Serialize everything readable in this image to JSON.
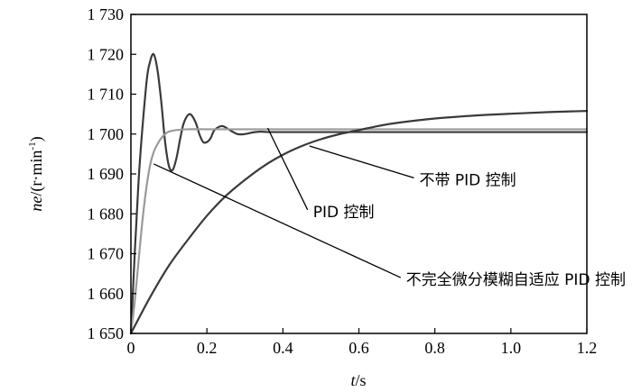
{
  "chart_data": {
    "type": "line",
    "title": "",
    "xlabel_var": "t",
    "xlabel_unit": "/s",
    "ylabel_var": "ne",
    "ylabel_unit": "/(r·min",
    "ylabel_exp": "-1",
    "ylabel_close": ")",
    "xlim": [
      0,
      1.2
    ],
    "ylim": [
      1650,
      1730
    ],
    "grid": false,
    "xticks": [
      0,
      0.2,
      0.4,
      0.6,
      0.8,
      1.0,
      1.2
    ],
    "xtick_labels": [
      "0",
      "0.2",
      "0.4",
      "0.6",
      "0.8",
      "1.0",
      "1.2"
    ],
    "yticks": [
      1650,
      1660,
      1670,
      1680,
      1690,
      1700,
      1710,
      1720,
      1730
    ],
    "ytick_labels": [
      "1 650",
      "1 660",
      "1 670",
      "1 680",
      "1 690",
      "1 700",
      "1 710",
      "1 720",
      "1 730"
    ],
    "series": [
      {
        "color": "#3a3a3a",
        "x": [
          0,
          0.02,
          0.04,
          0.05,
          0.06,
          0.07,
          0.08,
          0.09,
          0.1,
          0.11,
          0.12,
          0.13,
          0.14,
          0.155,
          0.17,
          0.18,
          0.19,
          0.2,
          0.21,
          0.22,
          0.24,
          0.26,
          0.28,
          0.3,
          0.32,
          0.34,
          0.36,
          0.4,
          0.5,
          0.6,
          0.8,
          1.0,
          1.2
        ],
        "y": [
          1650,
          1688,
          1712,
          1718,
          1720,
          1716,
          1708,
          1698,
          1692,
          1691,
          1694,
          1699,
          1703,
          1705,
          1703,
          1700,
          1698,
          1698,
          1699,
          1701,
          1702,
          1701,
          1700,
          1700,
          1700.4,
          1700.6,
          1700.5,
          1700.5,
          1700.5,
          1700.5,
          1700.5,
          1700.5,
          1700.5
        ]
      },
      {
        "color": "#9a9a9a",
        "x": [
          0,
          0.01,
          0.02,
          0.03,
          0.04,
          0.05,
          0.06,
          0.07,
          0.08,
          0.09,
          0.1,
          0.12,
          0.15,
          0.2,
          0.3,
          0.5,
          0.8,
          1.0,
          1.2
        ],
        "y": [
          1650,
          1658,
          1668,
          1678,
          1686,
          1692,
          1695.5,
          1697.5,
          1699,
          1700,
          1700.6,
          1701,
          1701.2,
          1701.2,
          1701.2,
          1701.2,
          1701.2,
          1701.2,
          1701.2
        ]
      },
      {
        "color": "#3a3a3a",
        "x": [
          0,
          0.05,
          0.1,
          0.15,
          0.2,
          0.25,
          0.3,
          0.35,
          0.4,
          0.45,
          0.5,
          0.55,
          0.6,
          0.65,
          0.7,
          0.8,
          0.9,
          1.0,
          1.1,
          1.2
        ],
        "y": [
          1650,
          1659,
          1667,
          1673.5,
          1679.5,
          1684.5,
          1688.5,
          1692,
          1694.8,
          1697,
          1698.7,
          1700,
          1701,
          1702,
          1702.8,
          1703.9,
          1704.6,
          1705.1,
          1705.5,
          1705.8
        ]
      }
    ],
    "annotations": [
      {
        "text": "不带 PID 控制",
        "point": [
          0.47,
          1697
        ],
        "label": [
          0.745,
          1689
        ]
      },
      {
        "text": "PID 控制",
        "point": [
          0.36,
          1701.5
        ],
        "label": [
          0.465,
          1681
        ]
      },
      {
        "text": "不完全微分模糊自适应 PID 控制",
        "point": [
          0.06,
          1692.5
        ],
        "label": [
          0.71,
          1664
        ]
      }
    ]
  }
}
